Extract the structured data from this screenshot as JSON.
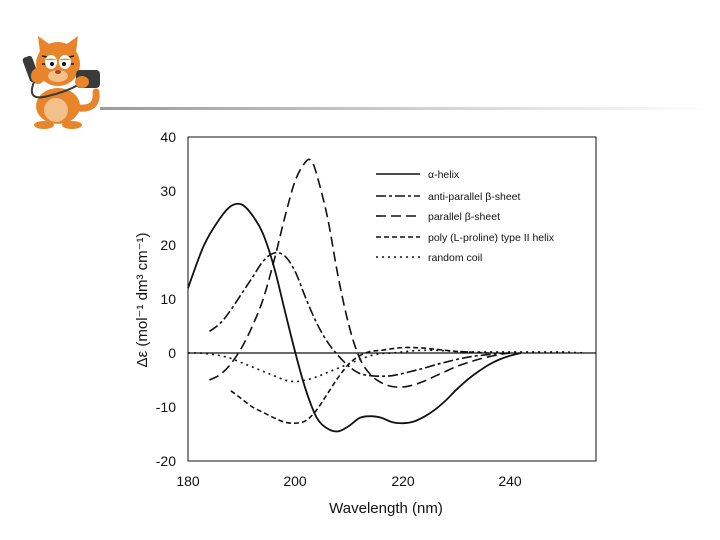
{
  "page": {
    "mascot_icon": "cat-on-phone-icon",
    "colors": {
      "line": "#111111",
      "divider": "#9a9a9a",
      "cat": "#e8842a"
    }
  },
  "chart_data": {
    "type": "line",
    "title": "",
    "xlabel": "Wavelength (nm)",
    "ylabel": "Δε (mol⁻¹ dm³ cm⁻¹)",
    "xlim": [
      180,
      256
    ],
    "ylim": [
      -20,
      40
    ],
    "xticks": [
      180,
      200,
      220,
      240
    ],
    "yticks": [
      40,
      30,
      20,
      10,
      0,
      -10,
      -20
    ],
    "legend_position": "top-right",
    "series": [
      {
        "name": "α-helix",
        "dash": "solid",
        "x": [
          180,
          183,
          186,
          188,
          190,
          192,
          194,
          196,
          198,
          200,
          202,
          204,
          206,
          208,
          210,
          212,
          214,
          216,
          218,
          220,
          222,
          224,
          226,
          228,
          230,
          232,
          234,
          236,
          238,
          240,
          242
        ],
        "y": [
          12,
          20,
          25,
          27.2,
          27.5,
          25.5,
          22,
          16,
          8,
          0,
          -7,
          -12,
          -14,
          -14.5,
          -13.5,
          -12,
          -11.7,
          -12,
          -12.8,
          -13,
          -12.7,
          -11.8,
          -10.5,
          -8.8,
          -6.8,
          -5,
          -3.5,
          -2.2,
          -1.2,
          -0.5,
          0
        ]
      },
      {
        "name": "anti-parallel β-sheet",
        "dash": "long-short",
        "x": [
          184,
          186,
          188,
          190,
          192,
          194,
          196,
          198,
          200,
          202,
          204,
          206,
          208,
          210,
          212,
          214,
          216,
          218,
          220,
          222,
          224,
          226,
          228,
          230,
          232,
          234,
          236,
          238,
          240
        ],
        "y": [
          4,
          5.5,
          8,
          11,
          14,
          17,
          18.5,
          18,
          15,
          10,
          5.5,
          2,
          -0.5,
          -2.5,
          -3.8,
          -4.2,
          -4.3,
          -4.2,
          -3.8,
          -3.3,
          -2.8,
          -2.2,
          -1.7,
          -1.2,
          -0.8,
          -0.5,
          -0.3,
          -0.1,
          0
        ]
      },
      {
        "name": "parallel β-sheet",
        "dash": "long",
        "x": [
          184,
          186,
          188,
          190,
          192,
          194,
          196,
          198,
          200,
          202,
          203,
          204,
          206,
          208,
          210,
          212,
          214,
          216,
          218,
          220,
          222,
          224,
          226,
          228,
          230,
          232,
          234,
          236,
          238,
          240
        ],
        "y": [
          -5,
          -4,
          -2,
          1,
          5,
          10,
          17,
          25,
          32,
          35.5,
          35.5,
          33,
          25,
          14,
          5,
          -1,
          -4,
          -5.5,
          -6.2,
          -6.3,
          -5.9,
          -5.2,
          -4.3,
          -3.4,
          -2.5,
          -1.8,
          -1.2,
          -0.7,
          -0.3,
          0
        ]
      },
      {
        "name": "poly (L-proline) type II helix",
        "dash": "short",
        "x": [
          188,
          190,
          192,
          194,
          196,
          198,
          200,
          202,
          204,
          206,
          208,
          210,
          212,
          214,
          216,
          218,
          220,
          222,
          224,
          226,
          228,
          230,
          232,
          234,
          236
        ],
        "y": [
          -7,
          -8.5,
          -10,
          -11,
          -12,
          -12.8,
          -13,
          -12.5,
          -10.5,
          -7.5,
          -4.5,
          -2,
          -0.5,
          0.3,
          0.5,
          0.8,
          1,
          1,
          0.9,
          0.7,
          0.5,
          0.3,
          0.2,
          0.1,
          0
        ]
      },
      {
        "name": "random coil",
        "dash": "dotted",
        "x": [
          180,
          182,
          184,
          186,
          188,
          190,
          192,
          194,
          196,
          198,
          200,
          202,
          204,
          206,
          208,
          210,
          212,
          214,
          216,
          218,
          220,
          222,
          224,
          226,
          228,
          230,
          232,
          234,
          236,
          238,
          240,
          242,
          244,
          246,
          248,
          250,
          252,
          254
        ],
        "y": [
          0,
          0,
          -0.2,
          -0.5,
          -1,
          -1.8,
          -2.6,
          -3.4,
          -4.2,
          -5,
          -5.3,
          -5,
          -4.4,
          -3.6,
          -2.8,
          -2,
          -1.2,
          -0.5,
          -0.1,
          0,
          0.2,
          0.4,
          0.5,
          0.5,
          0.4,
          0.3,
          0.2,
          0.2,
          0.2,
          0.2,
          0.2,
          0.2,
          0.2,
          0.2,
          0.2,
          0.2,
          0.1,
          0
        ]
      }
    ]
  }
}
